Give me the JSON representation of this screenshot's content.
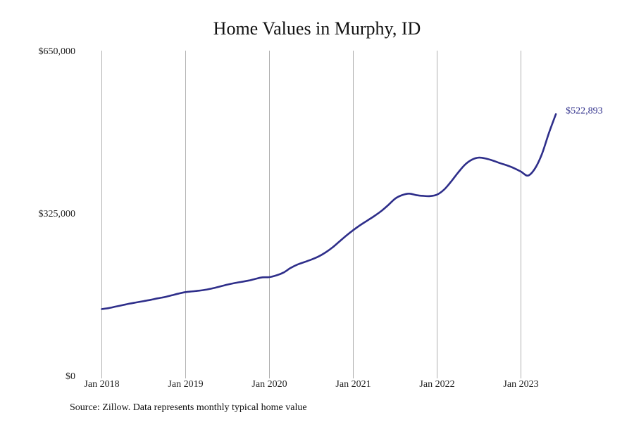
{
  "chart_data": {
    "type": "line",
    "title": "Home Values in Murphy, ID",
    "xlabel": "",
    "ylabel": "",
    "ylim": [
      0,
      650000
    ],
    "y_ticks": [
      {
        "value": 0,
        "label": "$0"
      },
      {
        "value": 325000,
        "label": "$325,000"
      },
      {
        "value": 650000,
        "label": "$650,000"
      }
    ],
    "x_ticks": [
      {
        "value": "2018-01",
        "label": "Jan 2018"
      },
      {
        "value": "2019-01",
        "label": "Jan 2019"
      },
      {
        "value": "2020-01",
        "label": "Jan 2020"
      },
      {
        "value": "2021-01",
        "label": "Jan 2021"
      },
      {
        "value": "2022-01",
        "label": "Jan 2022"
      },
      {
        "value": "2023-01",
        "label": "Jan 2023"
      }
    ],
    "grid": "vertical",
    "series": [
      {
        "color": "#2e2e8a",
        "end_label": "$522,893",
        "points": [
          [
            "2018-01",
            133000
          ],
          [
            "2018-02",
            135000
          ],
          [
            "2018-03",
            138000
          ],
          [
            "2018-04",
            141000
          ],
          [
            "2018-05",
            144000
          ],
          [
            "2018-06",
            146500
          ],
          [
            "2018-07",
            149000
          ],
          [
            "2018-08",
            151500
          ],
          [
            "2018-09",
            154500
          ],
          [
            "2018-10",
            157000
          ],
          [
            "2018-11",
            160500
          ],
          [
            "2018-12",
            164000
          ],
          [
            "2019-01",
            167000
          ],
          [
            "2019-02",
            168500
          ],
          [
            "2019-03",
            170000
          ],
          [
            "2019-04",
            172000
          ],
          [
            "2019-05",
            175000
          ],
          [
            "2019-06",
            178500
          ],
          [
            "2019-07",
            182000
          ],
          [
            "2019-08",
            185000
          ],
          [
            "2019-09",
            187500
          ],
          [
            "2019-10",
            190000
          ],
          [
            "2019-11",
            193500
          ],
          [
            "2019-12",
            196500
          ],
          [
            "2020-01",
            197000
          ],
          [
            "2020-02",
            200500
          ],
          [
            "2020-03",
            206000
          ],
          [
            "2020-04",
            215000
          ],
          [
            "2020-05",
            222000
          ],
          [
            "2020-06",
            227000
          ],
          [
            "2020-07",
            232000
          ],
          [
            "2020-08",
            238000
          ],
          [
            "2020-09",
            246000
          ],
          [
            "2020-10",
            256000
          ],
          [
            "2020-11",
            268000
          ],
          [
            "2020-12",
            280000
          ],
          [
            "2021-01",
            291000
          ],
          [
            "2021-02",
            301000
          ],
          [
            "2021-03",
            310000
          ],
          [
            "2021-04",
            319000
          ],
          [
            "2021-05",
            329000
          ],
          [
            "2021-06",
            341000
          ],
          [
            "2021-07",
            354000
          ],
          [
            "2021-08",
            361000
          ],
          [
            "2021-09",
            364000
          ],
          [
            "2021-10",
            361000
          ],
          [
            "2021-11",
            359500
          ],
          [
            "2021-12",
            359000
          ],
          [
            "2022-01",
            362000
          ],
          [
            "2022-02",
            372000
          ],
          [
            "2022-03",
            388000
          ],
          [
            "2022-04",
            406000
          ],
          [
            "2022-05",
            422000
          ],
          [
            "2022-06",
            432000
          ],
          [
            "2022-07",
            436000
          ],
          [
            "2022-08",
            434000
          ],
          [
            "2022-09",
            430000
          ],
          [
            "2022-10",
            425000
          ],
          [
            "2022-11",
            420500
          ],
          [
            "2022-12",
            415000
          ],
          [
            "2023-01",
            408000
          ],
          [
            "2023-02",
            400000
          ],
          [
            "2023-03",
            414000
          ],
          [
            "2023-04",
            443000
          ],
          [
            "2023-05",
            485000
          ],
          [
            "2023-06",
            522893
          ]
        ]
      }
    ]
  },
  "footer": {
    "source": "Source: Zillow. Data represents monthly typical home value"
  }
}
